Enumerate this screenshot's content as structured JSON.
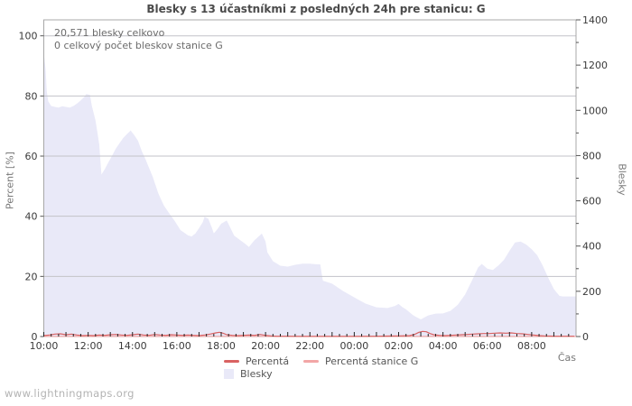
{
  "title": "Blesky s 13 účastníkmi z posledných 24h pre stanicu: G",
  "annotations": {
    "total": "20,571 blesky celkovo",
    "station_total": "0 celkový počet bleskov stanice G"
  },
  "watermark": "www.lightningmaps.org",
  "colors": {
    "area_fill": "#e9e9f8",
    "percenta_line": "#d96262",
    "stanica_line": "#f2a6a6",
    "gridline": "#c3c3c9",
    "plot_border": "#a8a8a8"
  },
  "chart_data": {
    "type": "area",
    "title": "Blesky s 13 účastníkmi z posledných 24h pre stanicu: G",
    "x_unit": "minutes since 10:00, 24h span",
    "left_axis": {
      "label": "Percent  [%]",
      "range": [
        0,
        100
      ],
      "ticks": [
        0,
        20,
        40,
        60,
        80,
        100
      ],
      "gridlines": [
        20,
        40,
        60,
        80,
        100
      ]
    },
    "right_axis": {
      "label": "Blesky",
      "range": [
        0,
        1400
      ],
      "tick_step": 200,
      "minor_step": 100
    },
    "x_axis": {
      "label": "Čas",
      "tick_labels": [
        "10:00",
        "12:00",
        "14:00",
        "16:00",
        "18:00",
        "20:00",
        "22:00",
        "00:00",
        "02:00",
        "04:00",
        "06:00",
        "08:00"
      ],
      "label_step_min": 120,
      "major_tick_min": 60,
      "minor_tick_min": 20
    },
    "series": [
      {
        "name": "Blesky",
        "type": "area",
        "axis": "right",
        "color": "#e9e9f8",
        "points": [
          [
            0,
            1256
          ],
          [
            5,
            1180
          ],
          [
            8,
            1085
          ],
          [
            12,
            1040
          ],
          [
            20,
            1019
          ],
          [
            30,
            1015
          ],
          [
            40,
            1012
          ],
          [
            50,
            1018
          ],
          [
            60,
            1015
          ],
          [
            70,
            1012
          ],
          [
            80,
            1019
          ],
          [
            90,
            1030
          ],
          [
            100,
            1044
          ],
          [
            110,
            1060
          ],
          [
            115,
            1072
          ],
          [
            125,
            1068
          ],
          [
            130,
            1020
          ],
          [
            140,
            955
          ],
          [
            150,
            850
          ],
          [
            156,
            716
          ],
          [
            165,
            740
          ],
          [
            175,
            771
          ],
          [
            185,
            800
          ],
          [
            195,
            831
          ],
          [
            205,
            855
          ],
          [
            215,
            878
          ],
          [
            225,
            895
          ],
          [
            235,
            911
          ],
          [
            245,
            890
          ],
          [
            255,
            865
          ],
          [
            265,
            820
          ],
          [
            275,
            785
          ],
          [
            285,
            745
          ],
          [
            295,
            705
          ],
          [
            310,
            632
          ],
          [
            325,
            579
          ],
          [
            340,
            543
          ],
          [
            355,
            509
          ],
          [
            370,
            470
          ],
          [
            380,
            459
          ],
          [
            390,
            447
          ],
          [
            400,
            442
          ],
          [
            410,
            455
          ],
          [
            420,
            479
          ],
          [
            430,
            505
          ],
          [
            435,
            529
          ],
          [
            445,
            521
          ],
          [
            455,
            480
          ],
          [
            460,
            456
          ],
          [
            470,
            475
          ],
          [
            480,
            499
          ],
          [
            495,
            513
          ],
          [
            505,
            480
          ],
          [
            515,
            446
          ],
          [
            530,
            428
          ],
          [
            545,
            410
          ],
          [
            555,
            396
          ],
          [
            570,
            426
          ],
          [
            590,
            455
          ],
          [
            600,
            420
          ],
          [
            605,
            372
          ],
          [
            620,
            333
          ],
          [
            640,
            313
          ],
          [
            660,
            309
          ],
          [
            680,
            317
          ],
          [
            700,
            322
          ],
          [
            720,
            322
          ],
          [
            740,
            319
          ],
          [
            748,
            319
          ],
          [
            755,
            247
          ],
          [
            780,
            234
          ],
          [
            810,
            201
          ],
          [
            840,
            173
          ],
          [
            870,
            146
          ],
          [
            900,
            129
          ],
          [
            930,
            126
          ],
          [
            950,
            135
          ],
          [
            960,
            144
          ],
          [
            970,
            130
          ],
          [
            980,
            120
          ],
          [
            1000,
            93
          ],
          [
            1020,
            76
          ],
          [
            1040,
            93
          ],
          [
            1060,
            101
          ],
          [
            1080,
            102
          ],
          [
            1100,
            113
          ],
          [
            1120,
            140
          ],
          [
            1140,
            186
          ],
          [
            1160,
            253
          ],
          [
            1175,
            305
          ],
          [
            1185,
            321
          ],
          [
            1200,
            300
          ],
          [
            1215,
            294
          ],
          [
            1230,
            314
          ],
          [
            1245,
            339
          ],
          [
            1260,
            379
          ],
          [
            1275,
            416
          ],
          [
            1290,
            420
          ],
          [
            1305,
            407
          ],
          [
            1320,
            386
          ],
          [
            1335,
            359
          ],
          [
            1350,
            313
          ],
          [
            1365,
            259
          ],
          [
            1380,
            210
          ],
          [
            1395,
            180
          ],
          [
            1405,
            177
          ],
          [
            1440,
            177
          ]
        ]
      },
      {
        "name": "Percentá",
        "type": "line",
        "axis": "left",
        "color": "#d96262",
        "points": [
          [
            0,
            0.3
          ],
          [
            15,
            0.5
          ],
          [
            30,
            0.8
          ],
          [
            45,
            0.9
          ],
          [
            60,
            0.6
          ],
          [
            75,
            0.8
          ],
          [
            90,
            0.5
          ],
          [
            105,
            0.3
          ],
          [
            120,
            0.4
          ],
          [
            135,
            0.3
          ],
          [
            150,
            0.5
          ],
          [
            165,
            0.4
          ],
          [
            180,
            0.6
          ],
          [
            195,
            0.7
          ],
          [
            210,
            0.5
          ],
          [
            225,
            0.4
          ],
          [
            240,
            0.6
          ],
          [
            255,
            0.8
          ],
          [
            270,
            0.5
          ],
          [
            285,
            0.4
          ],
          [
            300,
            0.7
          ],
          [
            315,
            0.5
          ],
          [
            330,
            0.4
          ],
          [
            345,
            0.6
          ],
          [
            360,
            0.5
          ],
          [
            375,
            0.4
          ],
          [
            390,
            0.5
          ],
          [
            405,
            0.4
          ],
          [
            420,
            0.3
          ],
          [
            435,
            0.5
          ],
          [
            450,
            0.8
          ],
          [
            465,
            1.2
          ],
          [
            475,
            1.4
          ],
          [
            485,
            1.1
          ],
          [
            495,
            0.6
          ],
          [
            510,
            0.4
          ],
          [
            525,
            0.3
          ],
          [
            540,
            0.4
          ],
          [
            555,
            0.5
          ],
          [
            570,
            0.4
          ],
          [
            585,
            0.7
          ],
          [
            600,
            0.4
          ],
          [
            615,
            0.2
          ],
          [
            630,
            0.1
          ],
          [
            660,
            0.1
          ],
          [
            690,
            0.05
          ],
          [
            720,
            0.05
          ],
          [
            780,
            0.05
          ],
          [
            840,
            0.05
          ],
          [
            900,
            0.1
          ],
          [
            930,
            0.15
          ],
          [
            960,
            0.2
          ],
          [
            990,
            0.3
          ],
          [
            1005,
            0.8
          ],
          [
            1015,
            1.4
          ],
          [
            1025,
            1.7
          ],
          [
            1035,
            1.6
          ],
          [
            1045,
            1.0
          ],
          [
            1055,
            0.6
          ],
          [
            1070,
            0.4
          ],
          [
            1085,
            0.3
          ],
          [
            1100,
            0.4
          ],
          [
            1115,
            0.5
          ],
          [
            1130,
            0.6
          ],
          [
            1145,
            0.7
          ],
          [
            1160,
            0.8
          ],
          [
            1175,
            0.9
          ],
          [
            1190,
            1.0
          ],
          [
            1205,
            1.0
          ],
          [
            1220,
            1.1
          ],
          [
            1235,
            1.2
          ],
          [
            1250,
            1.1
          ],
          [
            1265,
            1.2
          ],
          [
            1280,
            1.0
          ],
          [
            1295,
            0.9
          ],
          [
            1310,
            0.7
          ],
          [
            1325,
            0.5
          ],
          [
            1340,
            0.3
          ],
          [
            1355,
            0.2
          ],
          [
            1370,
            0.15
          ],
          [
            1385,
            0.1
          ],
          [
            1400,
            0.1
          ],
          [
            1420,
            0.1
          ],
          [
            1435,
            0.1
          ]
        ]
      },
      {
        "name": "Percentá stanice G",
        "type": "line",
        "axis": "left",
        "color": "#f2a6a6",
        "points": [
          [
            0,
            0.05
          ],
          [
            1440,
            0.05
          ]
        ]
      }
    ]
  }
}
